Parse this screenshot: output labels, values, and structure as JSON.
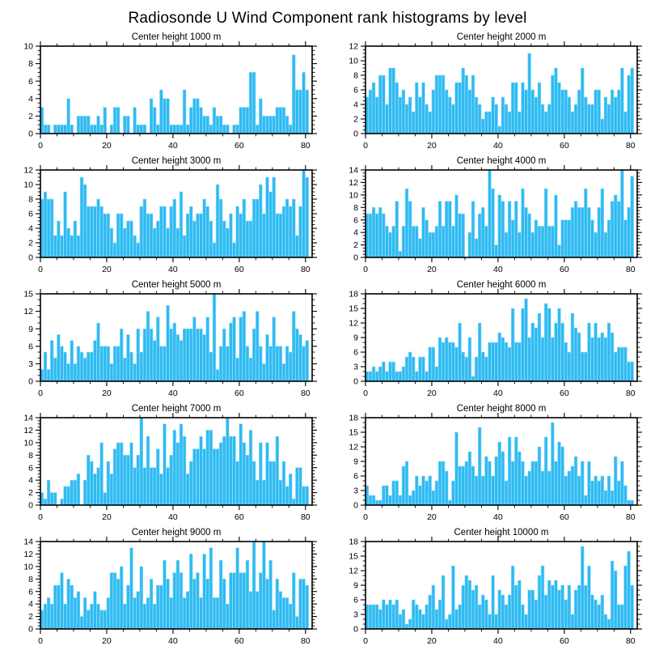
{
  "title": "Radiosonde U Wind Component rank histograms by level",
  "colors": {
    "bar": "#2fbaf2",
    "bar_edge": "#8ddcf8",
    "axis": "#000000",
    "background": "#ffffff"
  },
  "layout": {
    "rows": 5,
    "cols": 2,
    "legend": false,
    "grid": false
  },
  "chart_data": [
    {
      "type": "bar",
      "title": "Center height 1000 m",
      "ylim": [
        0,
        10
      ],
      "ytick_step": 2,
      "y_minor_step": 0.5,
      "xlim": [
        0,
        82
      ],
      "xticks": [
        0,
        20,
        40,
        60,
        80
      ],
      "x_minor_step": 5,
      "values": [
        3,
        1,
        1,
        0,
        1,
        1,
        1,
        1,
        4,
        1,
        0,
        2,
        2,
        2,
        2,
        1,
        1,
        2,
        1,
        3,
        0,
        1,
        3,
        3,
        0,
        2,
        2,
        0,
        3,
        1,
        1,
        1,
        0,
        4,
        3,
        1,
        5,
        4,
        4,
        1,
        1,
        1,
        1,
        5,
        1,
        3,
        4,
        4,
        3,
        2,
        2,
        1,
        3,
        2,
        2,
        1,
        1,
        0,
        1,
        1,
        3,
        3,
        3,
        7,
        7,
        1,
        4,
        2,
        2,
        2,
        2,
        3,
        3,
        3,
        2,
        1,
        9,
        5,
        5,
        7,
        5
      ]
    },
    {
      "type": "bar",
      "title": "Center height 2000 m",
      "ylim": [
        0,
        12
      ],
      "ytick_step": 2,
      "y_minor_step": 0.5,
      "xlim": [
        0,
        82
      ],
      "xticks": [
        0,
        20,
        40,
        60,
        80
      ],
      "x_minor_step": 5,
      "values": [
        5,
        6,
        7,
        5,
        8,
        8,
        4,
        9,
        9,
        7,
        5,
        6,
        4,
        5,
        3,
        7,
        5,
        7,
        4,
        3,
        6,
        8,
        8,
        8,
        6,
        5,
        4,
        7,
        7,
        9,
        8,
        6,
        8,
        5,
        4,
        2,
        3,
        3,
        5,
        4,
        1,
        5,
        4,
        3,
        7,
        7,
        3,
        7,
        6,
        11,
        6,
        5,
        7,
        4,
        3,
        4,
        8,
        9,
        7,
        6,
        6,
        5,
        3,
        4,
        6,
        9,
        5,
        4,
        4,
        6,
        6,
        2,
        5,
        4,
        6,
        5,
        6,
        9,
        3,
        8,
        9
      ]
    },
    {
      "type": "bar",
      "title": "Center height 3000 m",
      "ylim": [
        0,
        12
      ],
      "ytick_step": 2,
      "y_minor_step": 0.5,
      "xlim": [
        0,
        82
      ],
      "xticks": [
        0,
        20,
        40,
        60,
        80
      ],
      "x_minor_step": 5,
      "values": [
        8,
        9,
        8,
        8,
        3,
        5,
        3,
        9,
        4,
        3,
        5,
        3,
        11,
        10,
        7,
        7,
        7,
        8,
        7,
        6,
        6,
        4,
        2,
        6,
        6,
        4,
        5,
        5,
        3,
        2,
        7,
        8,
        6,
        6,
        4,
        5,
        7,
        7,
        4,
        7,
        8,
        4,
        9,
        3,
        6,
        7,
        5,
        6,
        6,
        8,
        7,
        5,
        2,
        10,
        8,
        5,
        4,
        6,
        2,
        7,
        6,
        8,
        5,
        5,
        8,
        8,
        10,
        6,
        11,
        9,
        11,
        6,
        6,
        7,
        8,
        7,
        8,
        3,
        7,
        12,
        11
      ]
    },
    {
      "type": "bar",
      "title": "Center height 4000 m",
      "ylim": [
        0,
        14
      ],
      "ytick_step": 2,
      "y_minor_step": 0.5,
      "xlim": [
        0,
        82
      ],
      "xticks": [
        0,
        20,
        40,
        60,
        80
      ],
      "x_minor_step": 5,
      "values": [
        7,
        7,
        8,
        7,
        8,
        7,
        5,
        4,
        5,
        9,
        1,
        5,
        11,
        9,
        5,
        5,
        3,
        8,
        6,
        4,
        4,
        5,
        9,
        5,
        9,
        9,
        5,
        10,
        7,
        7,
        0,
        4,
        9,
        3,
        7,
        8,
        5,
        14,
        11,
        2,
        10,
        9,
        4,
        9,
        6,
        9,
        4,
        11,
        8,
        7,
        4,
        6,
        5,
        5,
        11,
        5,
        5,
        10,
        2,
        6,
        6,
        6,
        8,
        9,
        8,
        8,
        11,
        8,
        6,
        4,
        8,
        11,
        4,
        6,
        9,
        10,
        9,
        14,
        6,
        8,
        13
      ]
    },
    {
      "type": "bar",
      "title": "Center height 5000 m",
      "ylim": [
        0,
        15
      ],
      "ytick_step": 3,
      "y_minor_step": 1,
      "xlim": [
        0,
        82
      ],
      "xticks": [
        0,
        20,
        40,
        60,
        80
      ],
      "x_minor_step": 5,
      "values": [
        2,
        5,
        2,
        7,
        4,
        8,
        6,
        5,
        3,
        7,
        3,
        6,
        5,
        4,
        5,
        5,
        7,
        10,
        6,
        6,
        6,
        3,
        6,
        6,
        9,
        4,
        8,
        5,
        3,
        9,
        5,
        9,
        12,
        9,
        7,
        11,
        6,
        6,
        13,
        9,
        10,
        8,
        7,
        9,
        9,
        9,
        11,
        9,
        9,
        8,
        11,
        5,
        15,
        2,
        6,
        9,
        6,
        10,
        11,
        4,
        11,
        12,
        6,
        4,
        9,
        12,
        6,
        3,
        8,
        6,
        11,
        6,
        6,
        3,
        6,
        5,
        12,
        9,
        8,
        6,
        7
      ]
    },
    {
      "type": "bar",
      "title": "Center height 6000 m",
      "ylim": [
        0,
        18
      ],
      "ytick_step": 3,
      "y_minor_step": 1,
      "xlim": [
        0,
        82
      ],
      "xticks": [
        0,
        20,
        40,
        60,
        80
      ],
      "x_minor_step": 5,
      "values": [
        2,
        2,
        3,
        2,
        3,
        4,
        2,
        4,
        4,
        2,
        2,
        3,
        5,
        6,
        5,
        2,
        5,
        5,
        2,
        7,
        7,
        3,
        9,
        8,
        9,
        8,
        8,
        7,
        12,
        6,
        5,
        9,
        1,
        5,
        12,
        6,
        5,
        8,
        8,
        8,
        10,
        9,
        8,
        7,
        15,
        8,
        8,
        15,
        17,
        9,
        12,
        11,
        14,
        9,
        16,
        15,
        9,
        12,
        15,
        12,
        8,
        6,
        14,
        11,
        10,
        6,
        6,
        12,
        9,
        12,
        9,
        10,
        9,
        12,
        10,
        6,
        7,
        7,
        7,
        4,
        4
      ]
    },
    {
      "type": "bar",
      "title": "Center height 7000 m",
      "ylim": [
        0,
        14
      ],
      "ytick_step": 2,
      "y_minor_step": 0.5,
      "xlim": [
        0,
        82
      ],
      "xticks": [
        0,
        20,
        40,
        60,
        80
      ],
      "x_minor_step": 5,
      "values": [
        2,
        1,
        4,
        2,
        2,
        0,
        1,
        3,
        3,
        4,
        4,
        5,
        0,
        4,
        8,
        7,
        5,
        6,
        10,
        2,
        7,
        5,
        9,
        10,
        10,
        8,
        8,
        10,
        6,
        8,
        14,
        6,
        11,
        6,
        6,
        9,
        5,
        13,
        6,
        8,
        12,
        10,
        13,
        11,
        5,
        7,
        9,
        9,
        11,
        9,
        12,
        12,
        9,
        9,
        10,
        11,
        14,
        11,
        11,
        7,
        13,
        10,
        8,
        12,
        7,
        4,
        10,
        4,
        10,
        7,
        7,
        11,
        4,
        7,
        3,
        5,
        1,
        6,
        6,
        3,
        3
      ]
    },
    {
      "type": "bar",
      "title": "Center height 8000 m",
      "ylim": [
        0,
        18
      ],
      "ytick_step": 3,
      "y_minor_step": 1,
      "xlim": [
        0,
        82
      ],
      "xticks": [
        0,
        20,
        40,
        60,
        80
      ],
      "x_minor_step": 5,
      "values": [
        4,
        2,
        2,
        1,
        1,
        4,
        4,
        2,
        5,
        5,
        2,
        8,
        9,
        2,
        3,
        6,
        4,
        6,
        5,
        6,
        3,
        5,
        9,
        9,
        7,
        1,
        5,
        15,
        8,
        8,
        9,
        11,
        8,
        6,
        16,
        6,
        10,
        9,
        6,
        10,
        13,
        11,
        5,
        14,
        9,
        14,
        11,
        9,
        6,
        7,
        9,
        9,
        12,
        7,
        14,
        7,
        17,
        9,
        13,
        12,
        6,
        7,
        8,
        10,
        6,
        9,
        2,
        9,
        5,
        6,
        5,
        6,
        3,
        6,
        3,
        10,
        5,
        9,
        4,
        1,
        1
      ]
    },
    {
      "type": "bar",
      "title": "Center height 9000 m",
      "ylim": [
        0,
        14
      ],
      "ytick_step": 2,
      "y_minor_step": 0.5,
      "xlim": [
        0,
        82
      ],
      "xticks": [
        0,
        20,
        40,
        60,
        80
      ],
      "x_minor_step": 5,
      "values": [
        3,
        4,
        5,
        4,
        7,
        7,
        9,
        4,
        8,
        7,
        5,
        6,
        2,
        5,
        3,
        4,
        6,
        4,
        3,
        3,
        5,
        9,
        9,
        8,
        10,
        4,
        7,
        13,
        5,
        6,
        10,
        4,
        5,
        8,
        4,
        7,
        7,
        11,
        8,
        5,
        9,
        11,
        9,
        5,
        6,
        12,
        8,
        9,
        5,
        12,
        8,
        13,
        5,
        5,
        11,
        8,
        4,
        9,
        9,
        13,
        9,
        9,
        11,
        6,
        14,
        6,
        9,
        14,
        8,
        11,
        3,
        8,
        6,
        5,
        5,
        4,
        9,
        2,
        8,
        8,
        7
      ]
    },
    {
      "type": "bar",
      "title": "Center height 10000 m",
      "ylim": [
        0,
        18
      ],
      "ytick_step": 3,
      "y_minor_step": 1,
      "xlim": [
        0,
        82
      ],
      "xticks": [
        0,
        20,
        40,
        60,
        80
      ],
      "x_minor_step": 5,
      "values": [
        5,
        5,
        5,
        5,
        4,
        6,
        5,
        6,
        5,
        6,
        3,
        4,
        1,
        2,
        6,
        5,
        4,
        3,
        5,
        7,
        9,
        4,
        6,
        11,
        2,
        3,
        13,
        4,
        5,
        9,
        11,
        10,
        8,
        9,
        5,
        7,
        6,
        3,
        11,
        3,
        8,
        7,
        5,
        7,
        13,
        9,
        10,
        5,
        3,
        8,
        8,
        6,
        11,
        13,
        7,
        10,
        9,
        10,
        8,
        9,
        6,
        9,
        3,
        8,
        9,
        17,
        9,
        13,
        7,
        6,
        5,
        7,
        3,
        2,
        14,
        12,
        5,
        5,
        13,
        16,
        9
      ]
    }
  ]
}
